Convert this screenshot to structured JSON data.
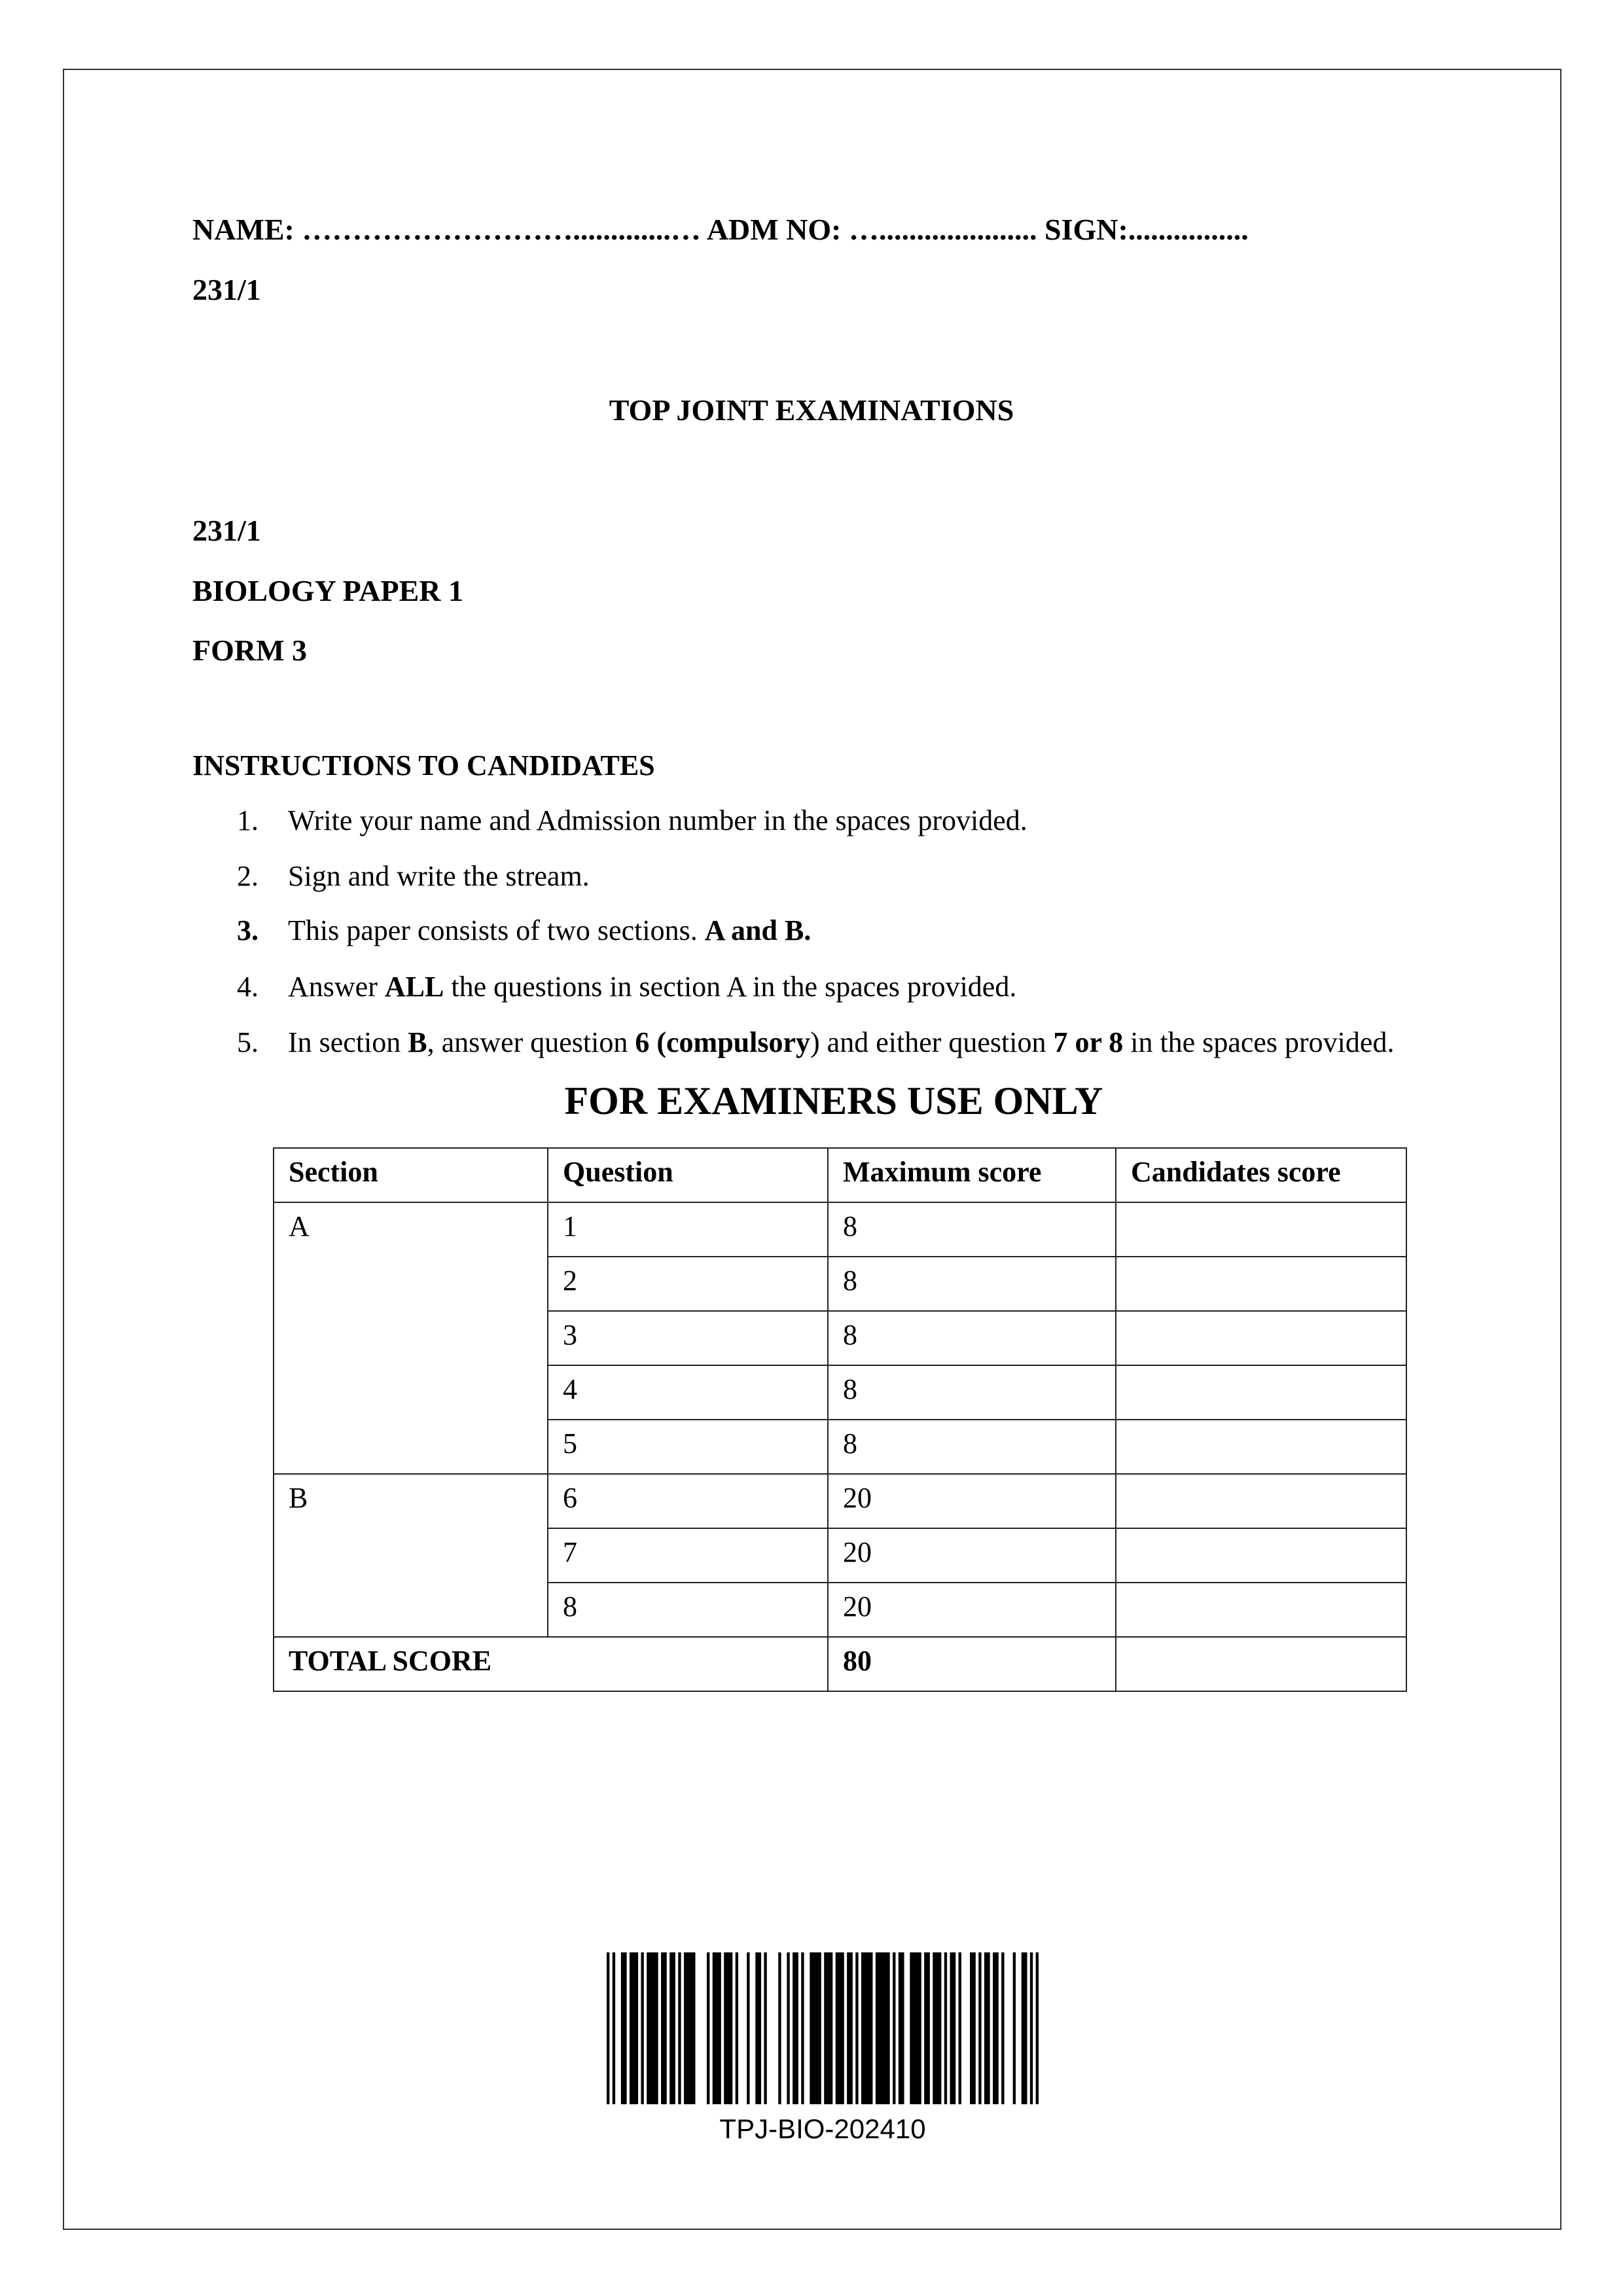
{
  "header": {
    "name_line": "NAME: ……………………….............… ADM NO: …..................... SIGN:................",
    "code_top": "231/1"
  },
  "exam_title": "TOP JOINT EXAMINATIONS",
  "paper": {
    "code": "231/1",
    "subject": "BIOLOGY PAPER 1",
    "form": "FORM 3"
  },
  "instructions": {
    "heading": "INSTRUCTIONS TO CANDIDATES",
    "items": [
      {
        "num": "1.",
        "parts": [
          {
            "t": "Write your name and Admission number in the spaces provided.",
            "b": false
          }
        ]
      },
      {
        "num": "2.",
        "parts": [
          {
            "t": "Sign and write the stream.",
            "b": false
          }
        ]
      },
      {
        "num": "3.",
        "num_bold": true,
        "parts": [
          {
            "t": "This paper consists of two sections. ",
            "b": false
          },
          {
            "t": "A and B.",
            "b": true
          }
        ]
      },
      {
        "num": "4.",
        "parts": [
          {
            "t": "Answer ",
            "b": false
          },
          {
            "t": "ALL",
            "b": true
          },
          {
            "t": " the questions in section A in the spaces provided.",
            "b": false
          }
        ]
      },
      {
        "num": "5.",
        "parts": [
          {
            "t": "In section ",
            "b": false
          },
          {
            "t": "B",
            "b": true
          },
          {
            "t": ", answer question ",
            "b": false
          },
          {
            "t": "6 (compulsory",
            "b": true
          },
          {
            "t": ") and either question ",
            "b": false
          },
          {
            "t": "7 or 8",
            "b": true
          },
          {
            "t": " in the spaces provided.",
            "b": false
          }
        ]
      }
    ]
  },
  "examiners": {
    "title": "FOR EXAMINERS USE ONLY",
    "columns": [
      "Section",
      "Question",
      "Maximum score",
      "Candidates score"
    ],
    "sections": [
      {
        "section": "A",
        "rows": [
          {
            "q": "1",
            "max": "8"
          },
          {
            "q": "2",
            "max": "8"
          },
          {
            "q": "3",
            "max": "8"
          },
          {
            "q": "4",
            "max": "8"
          },
          {
            "q": "5",
            "max": "8"
          }
        ]
      },
      {
        "section": "B",
        "rows": [
          {
            "q": "6",
            "max": "20"
          },
          {
            "q": "7",
            "max": "20"
          },
          {
            "q": "8",
            "max": "20"
          }
        ]
      }
    ],
    "total_label": "TOTAL SCORE",
    "total_max": "80"
  },
  "barcode": {
    "text": "TPJ-BIO-202410"
  }
}
